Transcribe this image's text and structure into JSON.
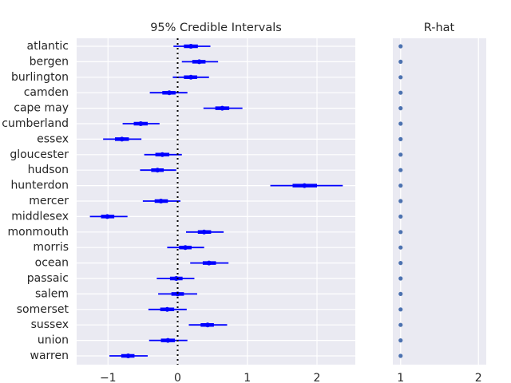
{
  "chart_data": [
    {
      "type": "forest",
      "title": "95% Credible Intervals",
      "xlabel": "",
      "ylabel": "",
      "xlim": [
        -1.45,
        2.55
      ],
      "xticks": [
        -1,
        0,
        1,
        2
      ],
      "xtick_labels": [
        "−1",
        "0",
        "1",
        "2"
      ],
      "reference_line": 0,
      "grid": true,
      "colors": {
        "interval": "#0000ff",
        "background": "#eaeaf2",
        "grid": "#ffffff",
        "reference": "#000000"
      },
      "categories": [
        "atlantic",
        "bergen",
        "burlington",
        "camden",
        "cape may",
        "cumberland",
        "essex",
        "gloucester",
        "hudson",
        "hunterdon",
        "mercer",
        "middlesex",
        "monmouth",
        "morris",
        "ocean",
        "passaic",
        "salem",
        "somerset",
        "sussex",
        "union",
        "warren"
      ],
      "series": [
        {
          "mean": 0.19,
          "low": -0.06,
          "high": 0.47,
          "iqr_low": 0.09,
          "iqr_high": 0.29
        },
        {
          "mean": 0.31,
          "low": 0.06,
          "high": 0.58,
          "iqr_low": 0.21,
          "iqr_high": 0.4
        },
        {
          "mean": 0.19,
          "low": -0.07,
          "high": 0.45,
          "iqr_low": 0.09,
          "iqr_high": 0.28
        },
        {
          "mean": -0.12,
          "low": -0.4,
          "high": 0.14,
          "iqr_low": -0.22,
          "iqr_high": -0.03
        },
        {
          "mean": 0.64,
          "low": 0.37,
          "high": 0.93,
          "iqr_low": 0.54,
          "iqr_high": 0.74
        },
        {
          "mean": -0.53,
          "low": -0.79,
          "high": -0.26,
          "iqr_low": -0.63,
          "iqr_high": -0.43
        },
        {
          "mean": -0.8,
          "low": -1.07,
          "high": -0.52,
          "iqr_low": -0.9,
          "iqr_high": -0.7
        },
        {
          "mean": -0.22,
          "low": -0.48,
          "high": 0.06,
          "iqr_low": -0.32,
          "iqr_high": -0.12
        },
        {
          "mean": -0.29,
          "low": -0.54,
          "high": -0.02,
          "iqr_low": -0.38,
          "iqr_high": -0.2
        },
        {
          "mean": 1.82,
          "low": 1.33,
          "high": 2.37,
          "iqr_low": 1.65,
          "iqr_high": 2.0
        },
        {
          "mean": -0.24,
          "low": -0.5,
          "high": 0.04,
          "iqr_low": -0.33,
          "iqr_high": -0.14
        },
        {
          "mean": -1.01,
          "low": -1.26,
          "high": -0.72,
          "iqr_low": -1.1,
          "iqr_high": -0.91
        },
        {
          "mean": 0.38,
          "low": 0.12,
          "high": 0.66,
          "iqr_low": 0.29,
          "iqr_high": 0.48
        },
        {
          "mean": 0.11,
          "low": -0.15,
          "high": 0.38,
          "iqr_low": 0.02,
          "iqr_high": 0.2
        },
        {
          "mean": 0.45,
          "low": 0.18,
          "high": 0.73,
          "iqr_low": 0.36,
          "iqr_high": 0.55
        },
        {
          "mean": -0.02,
          "low": -0.3,
          "high": 0.24,
          "iqr_low": -0.11,
          "iqr_high": 0.07
        },
        {
          "mean": 0.0,
          "low": -0.28,
          "high": 0.28,
          "iqr_low": -0.09,
          "iqr_high": 0.09
        },
        {
          "mean": -0.15,
          "low": -0.42,
          "high": 0.13,
          "iqr_low": -0.25,
          "iqr_high": -0.05
        },
        {
          "mean": 0.43,
          "low": 0.16,
          "high": 0.71,
          "iqr_low": 0.33,
          "iqr_high": 0.52
        },
        {
          "mean": -0.14,
          "low": -0.41,
          "high": 0.14,
          "iqr_low": -0.24,
          "iqr_high": -0.04
        },
        {
          "mean": -0.71,
          "low": -0.98,
          "high": -0.43,
          "iqr_low": -0.81,
          "iqr_high": -0.62
        }
      ]
    },
    {
      "type": "scatter",
      "title": "R-hat",
      "xlabel": "",
      "ylabel": "",
      "xlim": [
        0.9,
        2.1
      ],
      "xticks": [
        1,
        2
      ],
      "xtick_labels": [
        "1",
        "2"
      ],
      "grid": true,
      "colors": {
        "point": "#4c72b0",
        "background": "#eaeaf2",
        "grid": "#ffffff"
      },
      "categories": [
        "atlantic",
        "bergen",
        "burlington",
        "camden",
        "cape may",
        "cumberland",
        "essex",
        "gloucester",
        "hudson",
        "hunterdon",
        "mercer",
        "middlesex",
        "monmouth",
        "morris",
        "ocean",
        "passaic",
        "salem",
        "somerset",
        "sussex",
        "union",
        "warren"
      ],
      "values": [
        1.0,
        1.0,
        1.0,
        1.0,
        1.0,
        1.0,
        1.0,
        1.0,
        1.0,
        1.0,
        1.0,
        1.0,
        1.0,
        1.0,
        1.0,
        1.0,
        1.0,
        1.0,
        1.0,
        1.0,
        1.0
      ]
    }
  ]
}
